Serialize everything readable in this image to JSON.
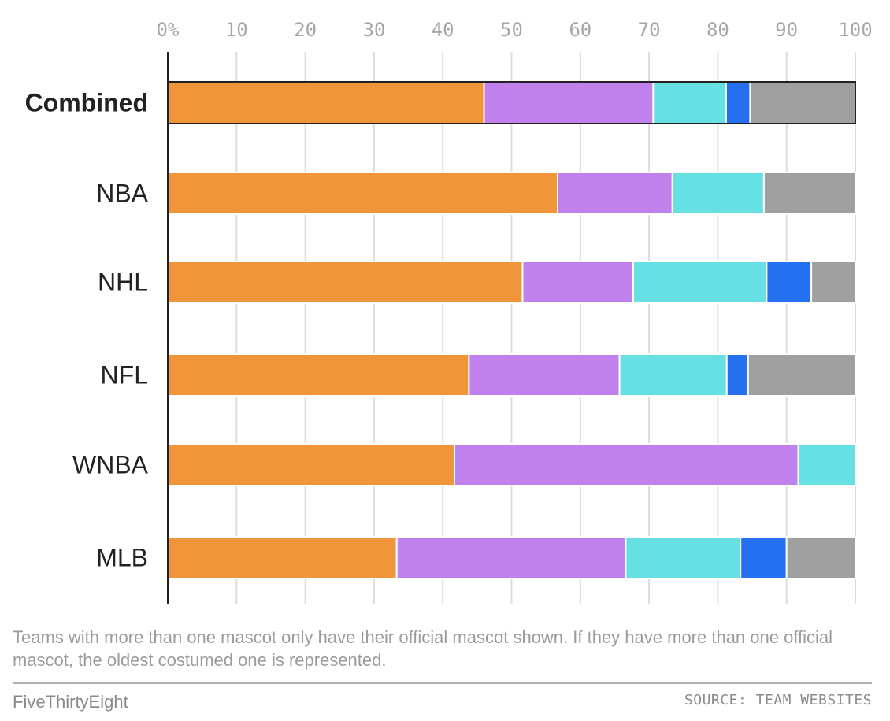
{
  "chart_data": {
    "type": "bar",
    "orientation": "horizontal",
    "stacked": true,
    "xlim": [
      0,
      100
    ],
    "x_ticks": [
      "0%",
      "10",
      "20",
      "30",
      "40",
      "50",
      "60",
      "70",
      "80",
      "90",
      "100"
    ],
    "categories": [
      "Combined",
      "NBA",
      "NHL",
      "NFL",
      "WNBA",
      "MLB"
    ],
    "highlight_category": "Combined",
    "series": [
      {
        "color": "#f0953a",
        "values": [
          46,
          56.7,
          51.6,
          43.8,
          41.7,
          33.3
        ]
      },
      {
        "color": "#c081ec",
        "values": [
          24.6,
          16.7,
          16.1,
          21.9,
          50,
          33.3
        ]
      },
      {
        "color": "#66e0e3",
        "values": [
          10.6,
          13.3,
          19.4,
          15.6,
          8.3,
          16.7
        ]
      },
      {
        "color": "#2470f0",
        "values": [
          3.5,
          0,
          6.5,
          3.1,
          0,
          6.7
        ]
      },
      {
        "color": "#a0a0a0",
        "values": [
          15.3,
          13.3,
          6.4,
          15.6,
          0,
          10
        ]
      }
    ],
    "grid": true
  },
  "footer": {
    "note": "Teams with more than one mascot only have their official mascot shown. If they have more than one official mascot, the oldest costumed one is represented.",
    "brand": "FiveThirtyEight",
    "source": "SOURCE: TEAM WEBSITES"
  }
}
